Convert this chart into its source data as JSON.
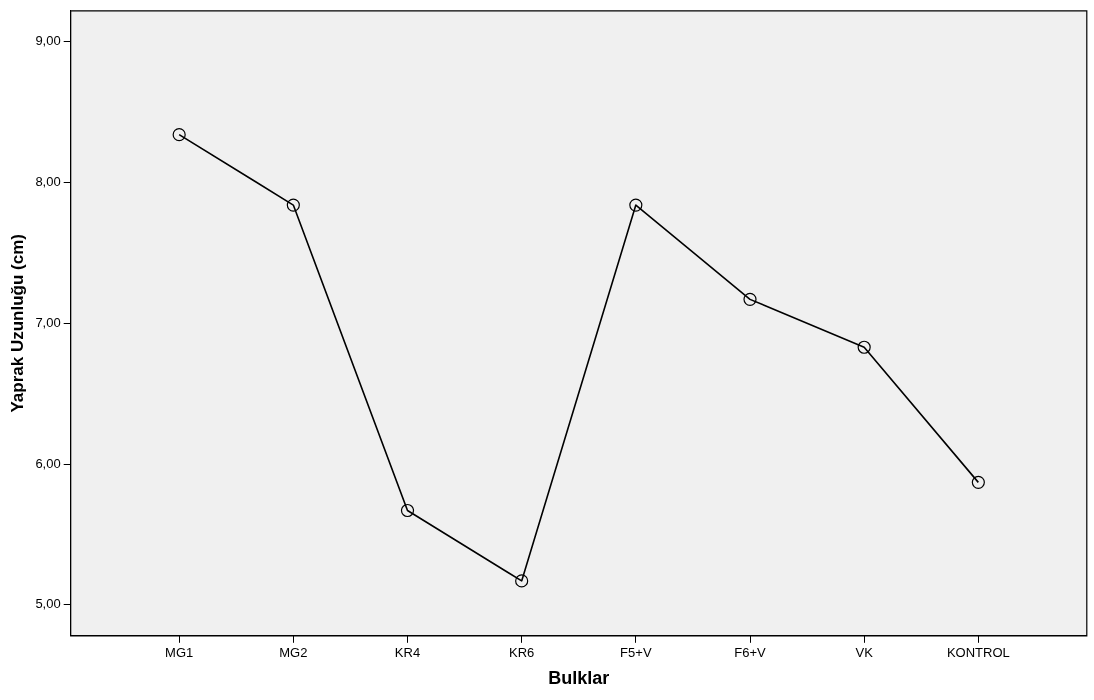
{
  "chart_data": {
    "type": "line",
    "xlabel": "Bulklar",
    "ylabel": "Yaprak Uzunluğu (cm)",
    "categories": [
      "MG1",
      "MG2",
      "KR4",
      "KR6",
      "F5+V",
      "F6+V",
      "VK",
      "KONTROL"
    ],
    "series": [
      {
        "color": "#000000",
        "values": [
          8.34,
          7.84,
          5.67,
          5.17,
          7.84,
          7.17,
          6.83,
          5.87
        ]
      }
    ],
    "ylim": [
      4.78,
      9.22
    ],
    "yticks": [
      {
        "value": 5,
        "label": "5,00"
      },
      {
        "value": 6,
        "label": "6,00"
      },
      {
        "value": 7,
        "label": "7,00"
      },
      {
        "value": 8,
        "label": "8,00"
      },
      {
        "value": 9,
        "label": "9,00"
      }
    ],
    "grid": false,
    "legend": false,
    "marker": "circle",
    "line_style": "solid"
  }
}
